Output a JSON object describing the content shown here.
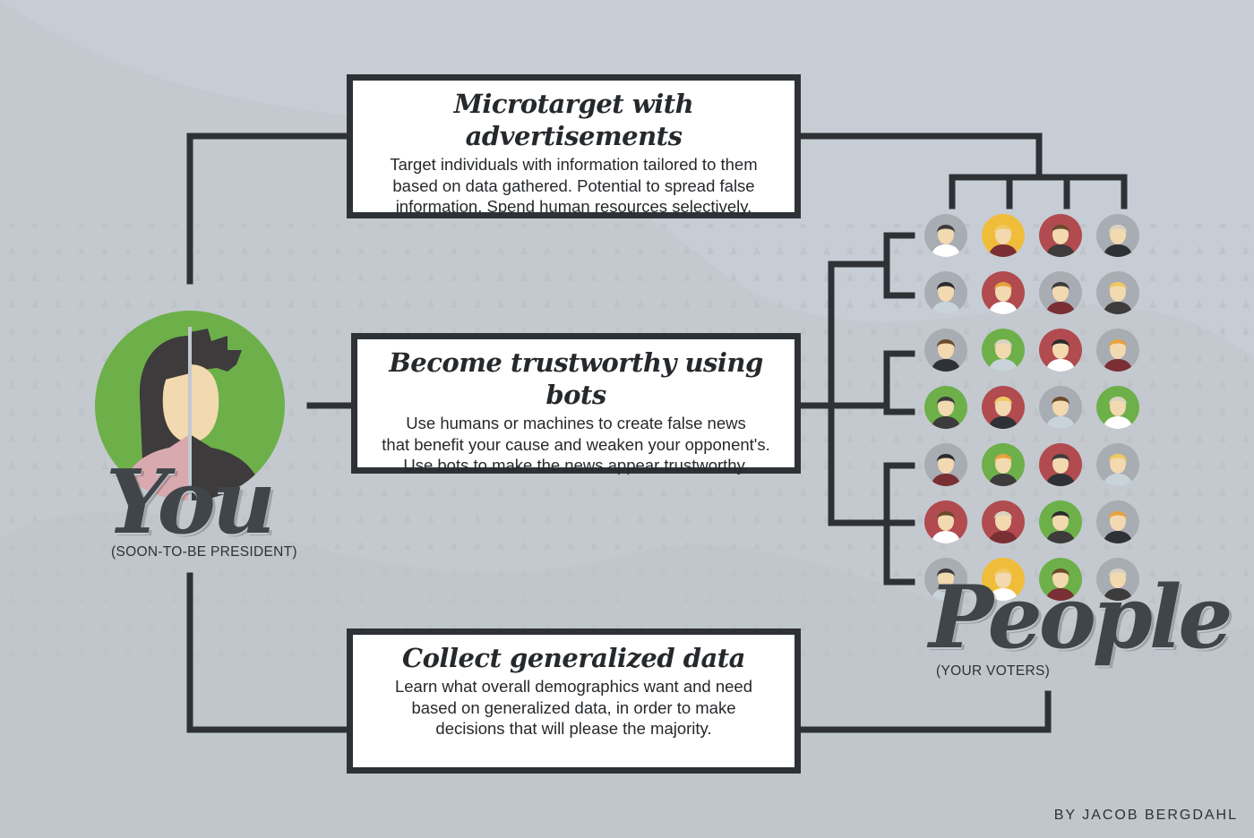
{
  "you": {
    "title": "You",
    "subtitle": "(SOON-TO-BE PRESIDENT)"
  },
  "people": {
    "title": "People",
    "subtitle": "(YOUR VOTERS)"
  },
  "boxes": {
    "ads": {
      "title": "Microtarget with advertisements",
      "lines": [
        "Target individuals with information tailored to them",
        "based on data gathered. Potential to spread false",
        "information. Spend human resources selectively."
      ]
    },
    "bots": {
      "title": "Become trustworthy using bots",
      "lines": [
        "Use humans or machines to create false news",
        "that benefit your cause and weaken your opponent's.",
        "Use bots to make the news appear trustworthy."
      ]
    },
    "data": {
      "title": "Collect generalized data",
      "lines": [
        "Learn what overall demographics want and need",
        "based on generalized data, in order to make",
        "decisions that will please the majority."
      ]
    }
  },
  "credit": "BY JACOB BERGDAHL",
  "colors": {
    "background": "#c3c9cf",
    "ink": "#2e3236",
    "green": "#6db04a",
    "yellow": "#efbd3a",
    "red": "#b14b4f",
    "grey": "#a8adb3",
    "skin": "#f2d9b0"
  },
  "voters": [
    [
      "grey",
      "yellow",
      "red",
      "grey"
    ],
    [
      "grey",
      "red",
      "grey",
      "grey"
    ],
    [
      "grey",
      "green",
      "red",
      "grey"
    ],
    [
      "green",
      "red",
      "grey",
      "green"
    ],
    [
      "grey",
      "green",
      "red",
      "grey"
    ],
    [
      "red",
      "red",
      "green",
      "grey"
    ],
    [
      "grey",
      "yellow",
      "green",
      "grey"
    ]
  ]
}
